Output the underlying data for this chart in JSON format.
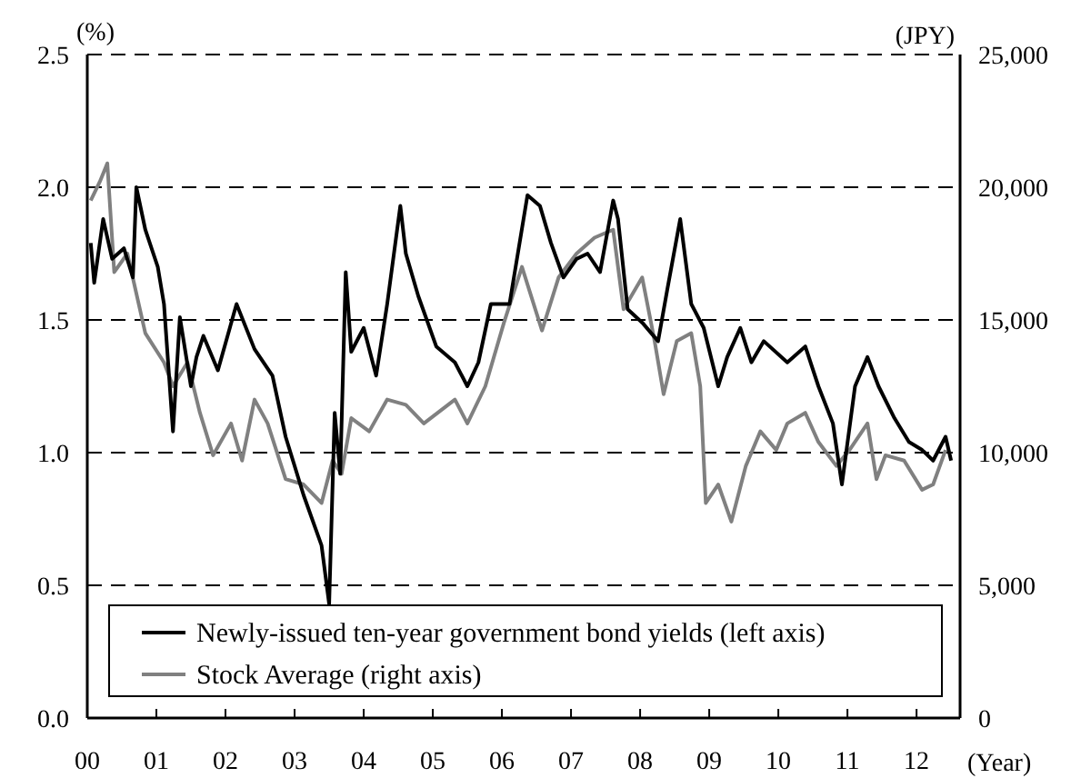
{
  "chart_data": {
    "type": "line",
    "xlabel": "(Year)",
    "ylabel": "(%)",
    "y2label": "(JPY)",
    "xlim": [
      2000,
      2012.63
    ],
    "xticks": [
      {
        "value": 2000,
        "label": "00"
      },
      {
        "value": 2001,
        "label": "01"
      },
      {
        "value": 2002,
        "label": "02"
      },
      {
        "value": 2003,
        "label": "03"
      },
      {
        "value": 2004,
        "label": "04"
      },
      {
        "value": 2005,
        "label": "05"
      },
      {
        "value": 2006,
        "label": "06"
      },
      {
        "value": 2007,
        "label": "07"
      },
      {
        "value": 2008,
        "label": "08"
      },
      {
        "value": 2009,
        "label": "09"
      },
      {
        "value": 2010,
        "label": "10"
      },
      {
        "value": 2011,
        "label": "11"
      },
      {
        "value": 2012,
        "label": "12"
      }
    ],
    "ylim": [
      0,
      2.5
    ],
    "yticks": [
      {
        "value": 0,
        "label": "0.0"
      },
      {
        "value": 0.5,
        "label": "0.5"
      },
      {
        "value": 1,
        "label": "1.0"
      },
      {
        "value": 1.5,
        "label": "1.5"
      },
      {
        "value": 2,
        "label": "2.0"
      },
      {
        "value": 2.5,
        "label": "2.5"
      }
    ],
    "y2lim": [
      0,
      25000
    ],
    "y2ticks": [
      0,
      {
        "value": 5000,
        "label": "5,000"
      },
      {
        "value": 10000,
        "label": "10,000"
      },
      {
        "value": 15000,
        "label": "15,000"
      },
      {
        "value": 20000,
        "label": "20,000"
      },
      {
        "value": 25000,
        "label": "25,000"
      }
    ],
    "grid": "y",
    "legend": "bottom",
    "line_style": "solid",
    "marker": "none",
    "series": [
      {
        "name": "Newly-issued ten-year government bond yields (left axis)",
        "color": "#000000",
        "x": [
          2000.05,
          2000.1,
          2000.23,
          2000.36,
          2000.53,
          2000.66,
          2000.71,
          2000.84,
          2001.02,
          2001.11,
          2001.24,
          2001.34,
          2001.5,
          2001.58,
          2001.68,
          2001.89,
          2002.16,
          2002.42,
          2002.68,
          2002.87,
          2003.13,
          2003.39,
          2003.5,
          2003.58,
          2003.66,
          2003.74,
          2003.82,
          2004,
          2004.18,
          2004.34,
          2004.53,
          2004.61,
          2004.79,
          2005.05,
          2005.32,
          2005.5,
          2005.66,
          2005.84,
          2006.11,
          2006.37,
          2006.55,
          2006.71,
          2006.89,
          2007.08,
          2007.24,
          2007.42,
          2007.61,
          2007.68,
          2007.82,
          2008.03,
          2008.26,
          2008.39,
          2008.58,
          2008.74,
          2008.92,
          2009.13,
          2009.26,
          2009.45,
          2009.61,
          2009.79,
          2010.13,
          2010.39,
          2010.58,
          2010.79,
          2010.92,
          2011.11,
          2011.29,
          2011.45,
          2011.68,
          2011.89,
          2012.08,
          2012.24,
          2012.42,
          2012.5
        ],
        "values": [
          1.79,
          1.64,
          1.88,
          1.73,
          1.77,
          1.66,
          2.0,
          1.84,
          1.7,
          1.56,
          1.08,
          1.51,
          1.25,
          1.36,
          1.44,
          1.31,
          1.56,
          1.39,
          1.29,
          1.06,
          0.84,
          0.65,
          0.43,
          1.15,
          0.92,
          1.68,
          1.38,
          1.47,
          1.29,
          1.56,
          1.93,
          1.75,
          1.59,
          1.4,
          1.34,
          1.25,
          1.34,
          1.56,
          1.56,
          1.97,
          1.93,
          1.79,
          1.66,
          1.73,
          1.75,
          1.68,
          1.95,
          1.88,
          1.54,
          1.49,
          1.42,
          1.61,
          1.88,
          1.56,
          1.47,
          1.25,
          1.36,
          1.47,
          1.34,
          1.42,
          1.34,
          1.4,
          1.25,
          1.11,
          0.88,
          1.25,
          1.36,
          1.25,
          1.13,
          1.04,
          1.01,
          0.97,
          1.06,
          0.97
        ]
      },
      {
        "name": "Stock Average (right axis)",
        "color": "#808080",
        "axis": "y2",
        "x": [
          2000.05,
          2000.18,
          2000.29,
          2000.39,
          2000.58,
          2000.84,
          2001.11,
          2001.24,
          2001.45,
          2001.63,
          2001.82,
          2002.08,
          2002.24,
          2002.42,
          2002.61,
          2002.87,
          2003.13,
          2003.39,
          2003.55,
          2003.68,
          2003.82,
          2004.08,
          2004.34,
          2004.61,
          2004.87,
          2005.32,
          2005.5,
          2005.76,
          2006.03,
          2006.29,
          2006.58,
          2006.82,
          2007.08,
          2007.34,
          2007.61,
          2007.76,
          2008.03,
          2008.21,
          2008.34,
          2008.53,
          2008.74,
          2008.87,
          2008.95,
          2009.13,
          2009.32,
          2009.53,
          2009.74,
          2009.97,
          2010.13,
          2010.39,
          2010.58,
          2010.84,
          2011.03,
          2011.29,
          2011.42,
          2011.55,
          2011.82,
          2012.08,
          2012.24,
          2012.42
        ],
        "values": [
          19500,
          20200,
          20900,
          16800,
          17500,
          14500,
          13400,
          12500,
          13400,
          11500,
          9900,
          11100,
          9700,
          12000,
          11100,
          9000,
          8800,
          8100,
          9700,
          9200,
          11300,
          10800,
          12000,
          11800,
          11100,
          12000,
          11100,
          12500,
          14900,
          17000,
          14600,
          16600,
          17500,
          18100,
          18400,
          15400,
          16600,
          14200,
          12200,
          14200,
          14500,
          12500,
          8100,
          8800,
          7400,
          9500,
          10800,
          10100,
          11100,
          11500,
          10400,
          9500,
          10100,
          11100,
          9000,
          9900,
          9700,
          8600,
          8800,
          10100
        ]
      }
    ]
  }
}
